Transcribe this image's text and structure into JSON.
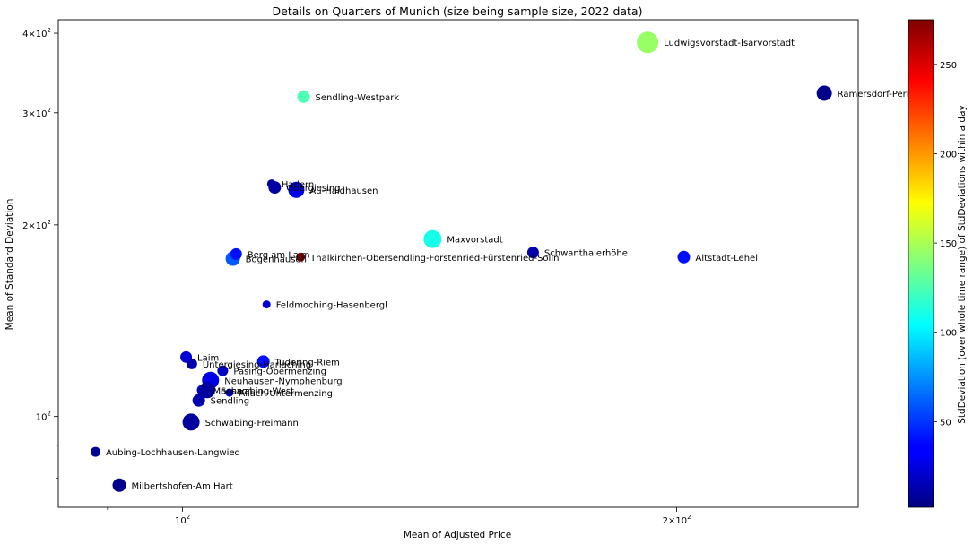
{
  "chart_data": {
    "type": "scatter",
    "title": "Details on Quarters of Munich (size being sample size, 2022 data)",
    "xlabel": "Mean of Adjusted Price",
    "ylabel": "Mean of Standard Deviation",
    "xscale": "log",
    "yscale": "log",
    "xlim": [
      84,
      258
    ],
    "ylim": [
      72,
      420
    ],
    "x_ticks": [
      {
        "value": 100,
        "label": "10²"
      },
      {
        "value": 200,
        "label": "2×10²"
      }
    ],
    "y_ticks": [
      {
        "value": 100,
        "label": "10²"
      },
      {
        "value": 200,
        "label": "2×10²"
      },
      {
        "value": 300,
        "label": "3×10²"
      },
      {
        "value": 400,
        "label": "4×10²"
      }
    ],
    "grid": false,
    "colorbar": {
      "label": "StdDeviation (over whole time range) of StdDeviations within a day",
      "colormap": "jet",
      "min": 2,
      "max": 275,
      "ticks": [
        50,
        100,
        150,
        200,
        250
      ]
    },
    "points": [
      {
        "name": "Ludwigsvorstadt-Isarvorstadt",
        "x": 192.0,
        "y": 387,
        "color_value": 145,
        "size": 24
      },
      {
        "name": "Sendling-Westpark",
        "x": 118.5,
        "y": 318,
        "color_value": 125,
        "size": 14
      },
      {
        "name": "Ramersdorf-Perlach",
        "x": 246.0,
        "y": 322,
        "color_value": 5,
        "size": 17
      },
      {
        "name": "Hadern",
        "x": 113.3,
        "y": 232,
        "color_value": 8,
        "size": 10
      },
      {
        "name": "Obergiesing",
        "x": 113.8,
        "y": 229,
        "color_value": 12,
        "size": 14
      },
      {
        "name": "Au-Haidhausen",
        "x": 117.3,
        "y": 227,
        "color_value": 30,
        "size": 18
      },
      {
        "name": "Maxvorstadt",
        "x": 142.0,
        "y": 190,
        "color_value": 110,
        "size": 20
      },
      {
        "name": "Schwanthalerhöhe",
        "x": 163.5,
        "y": 181,
        "color_value": 15,
        "size": 13
      },
      {
        "name": "Thalkirchen-Obersendling-Forstenried-Fürstenried-Solln",
        "x": 118.0,
        "y": 178,
        "color_value": 275,
        "size": 10
      },
      {
        "name": "Bogenhausen",
        "x": 107.3,
        "y": 177,
        "color_value": 60,
        "size": 16
      },
      {
        "name": "Berg am Laim",
        "x": 107.8,
        "y": 180,
        "color_value": 40,
        "size": 13
      },
      {
        "name": "Altstadt-Lehel",
        "x": 202.0,
        "y": 178,
        "color_value": 40,
        "size": 14
      },
      {
        "name": "Feldmoching-Hasenbergl",
        "x": 112.5,
        "y": 150,
        "color_value": 25,
        "size": 9
      },
      {
        "name": "Laim",
        "x": 100.5,
        "y": 124,
        "color_value": 25,
        "size": 13
      },
      {
        "name": "Untergiesing-Harlaching",
        "x": 101.3,
        "y": 121,
        "color_value": 15,
        "size": 12
      },
      {
        "name": "Tudering-Riem",
        "x": 112.0,
        "y": 122,
        "color_value": 40,
        "size": 14
      },
      {
        "name": "Pasing-Obermenzing",
        "x": 105.8,
        "y": 118,
        "color_value": 20,
        "size": 12
      },
      {
        "name": "Neuhausen-Nymphenburg",
        "x": 104.0,
        "y": 114,
        "color_value": 30,
        "size": 19
      },
      {
        "name": "Moosach",
        "x": 102.8,
        "y": 110,
        "color_value": 20,
        "size": 12
      },
      {
        "name": "Schwabing-West",
        "x": 103.5,
        "y": 110,
        "color_value": 10,
        "size": 18
      },
      {
        "name": "Allach-Untermenzing",
        "x": 106.8,
        "y": 109,
        "color_value": 18,
        "size": 9
      },
      {
        "name": "Sendling",
        "x": 102.3,
        "y": 106,
        "color_value": 15,
        "size": 14
      },
      {
        "name": "Schwabing-Freimann",
        "x": 101.2,
        "y": 98,
        "color_value": 10,
        "size": 19
      },
      {
        "name": "Aubing-Lochhausen-Langwied",
        "x": 88.5,
        "y": 88,
        "color_value": 8,
        "size": 11
      },
      {
        "name": "Milbertshofen-Am Hart",
        "x": 91.5,
        "y": 78,
        "color_value": 5,
        "size": 15
      }
    ]
  }
}
